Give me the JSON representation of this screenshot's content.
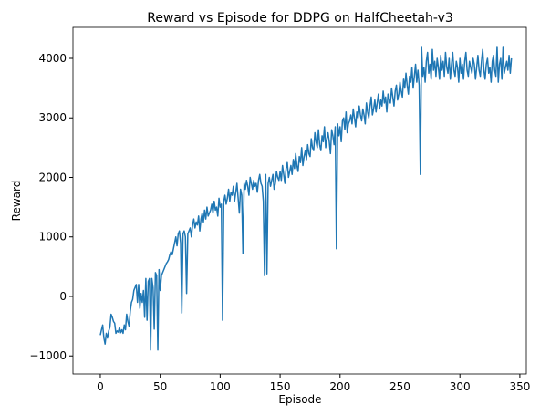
{
  "chart_data": {
    "type": "line",
    "title": "Reward vs Episode for DDPG on HalfCheetah-v3",
    "xlabel": "Episode",
    "ylabel": "Reward",
    "xlim": [
      -22.8,
      355.4
    ],
    "ylim": [
      -1303,
      4521
    ],
    "xticks": [
      0,
      50,
      100,
      150,
      200,
      250,
      300,
      350
    ],
    "yticks": [
      {
        "value": -1000,
        "label": "−1000"
      },
      0,
      1000,
      2000,
      3000,
      4000
    ],
    "grid": false,
    "x": [
      0,
      1,
      2,
      3,
      4,
      5,
      6,
      7,
      8,
      9,
      10,
      11,
      12,
      13,
      14,
      15,
      16,
      17,
      18,
      19,
      20,
      21,
      22,
      23,
      24,
      25,
      26,
      27,
      28,
      29,
      30,
      31,
      32,
      33,
      34,
      35,
      36,
      37,
      38,
      39,
      40,
      41,
      42,
      43,
      44,
      45,
      46,
      47,
      48,
      49,
      50,
      51,
      52,
      53,
      54,
      55,
      56,
      57,
      58,
      59,
      60,
      61,
      62,
      63,
      64,
      65,
      66,
      67,
      68,
      69,
      70,
      71,
      72,
      73,
      74,
      75,
      76,
      77,
      78,
      79,
      80,
      81,
      82,
      83,
      84,
      85,
      86,
      87,
      88,
      89,
      90,
      91,
      92,
      93,
      94,
      95,
      96,
      97,
      98,
      99,
      100,
      101,
      102,
      103,
      104,
      105,
      106,
      107,
      108,
      109,
      110,
      111,
      112,
      113,
      114,
      115,
      116,
      117,
      118,
      119,
      120,
      121,
      122,
      123,
      124,
      125,
      126,
      127,
      128,
      129,
      130,
      131,
      132,
      133,
      134,
      135,
      136,
      137,
      138,
      139,
      140,
      141,
      142,
      143,
      144,
      145,
      146,
      147,
      148,
      149,
      150,
      151,
      152,
      153,
      154,
      155,
      156,
      157,
      158,
      159,
      160,
      161,
      162,
      163,
      164,
      165,
      166,
      167,
      168,
      169,
      170,
      171,
      172,
      173,
      174,
      175,
      176,
      177,
      178,
      179,
      180,
      181,
      182,
      183,
      184,
      185,
      186,
      187,
      188,
      189,
      190,
      191,
      192,
      193,
      194,
      195,
      196,
      197,
      198,
      199,
      200,
      201,
      202,
      203,
      204,
      205,
      206,
      207,
      208,
      209,
      210,
      211,
      212,
      213,
      214,
      215,
      216,
      217,
      218,
      219,
      220,
      221,
      222,
      223,
      224,
      225,
      226,
      227,
      228,
      229,
      230,
      231,
      232,
      233,
      234,
      235,
      236,
      237,
      238,
      239,
      240,
      241,
      242,
      243,
      244,
      245,
      246,
      247,
      248,
      249,
      250,
      251,
      252,
      253,
      254,
      255,
      256,
      257,
      258,
      259,
      260,
      261,
      262,
      263,
      264,
      265,
      266,
      267,
      268,
      269,
      270,
      271,
      272,
      273,
      274,
      275,
      276,
      277,
      278,
      279,
      280,
      281,
      282,
      283,
      284,
      285,
      286,
      287,
      288,
      289,
      290,
      291,
      292,
      293,
      294,
      295,
      296,
      297,
      298,
      299,
      300,
      301,
      302,
      303,
      304,
      305,
      306,
      307,
      308,
      309,
      310,
      311,
      312,
      313,
      314,
      315,
      316,
      317,
      318,
      319,
      320,
      321,
      322,
      323,
      324,
      325,
      326,
      327,
      328,
      329,
      330,
      331,
      332,
      333,
      334,
      335,
      336,
      337,
      338,
      339,
      340,
      341,
      342,
      343
    ],
    "series": [
      {
        "name": "Reward",
        "color": "#1f77b4",
        "values": [
          -650,
          -560,
          -480,
          -700,
          -800,
          -620,
          -700,
          -580,
          -520,
          -300,
          -350,
          -420,
          -450,
          -620,
          -580,
          -600,
          -520,
          -610,
          -560,
          -620,
          -480,
          -560,
          -300,
          -420,
          -500,
          -250,
          -100,
          -50,
          100,
          150,
          200,
          -100,
          200,
          -200,
          50,
          -100,
          100,
          -350,
          300,
          -400,
          250,
          300,
          -900,
          300,
          150,
          -550,
          400,
          350,
          -900,
          450,
          100,
          350,
          400,
          450,
          500,
          550,
          580,
          620,
          700,
          750,
          700,
          800,
          900,
          1000,
          850,
          1050,
          1100,
          900,
          -280,
          1050,
          1100,
          1000,
          50,
          1050,
          1100,
          1150,
          1000,
          1200,
          1300,
          1150,
          1250,
          1200,
          1350,
          1100,
          1300,
          1400,
          1250,
          1450,
          1300,
          1500,
          1350,
          1400,
          1450,
          1550,
          1400,
          1600,
          1450,
          1500,
          1350,
          1650,
          1500,
          1550,
          -400,
          1600,
          1700,
          1550,
          1650,
          1800,
          1600,
          1750,
          1700,
          1850,
          1600,
          1750,
          1900,
          1650,
          1400,
          1800,
          1700,
          720,
          1900,
          1800,
          1950,
          1850,
          1700,
          2000,
          1900,
          1800,
          1950,
          1850,
          1900,
          1750,
          1950,
          2050,
          1900,
          1850,
          1600,
          350,
          2050,
          380,
          1900,
          2000,
          1850,
          1950,
          2050,
          1800,
          1900,
          2100,
          2000,
          1950,
          2100,
          1950,
          2200,
          2050,
          1900,
          2150,
          2250,
          2000,
          2100,
          2200,
          2050,
          2300,
          2150,
          2400,
          2200,
          2100,
          2350,
          2250,
          2500,
          2200,
          2350,
          2450,
          2300,
          2550,
          2400,
          2350,
          2650,
          2500,
          2450,
          2750,
          2600,
          2500,
          2800,
          2550,
          2450,
          2700,
          2600,
          2850,
          2500,
          2650,
          2750,
          2600,
          2400,
          2800,
          2700,
          2550,
          2850,
          800,
          2900,
          2700,
          2850,
          2600,
          2950,
          3000,
          2800,
          3100,
          2750,
          2900,
          2950,
          3050,
          2900,
          3150,
          3000,
          2850,
          3100,
          3000,
          3200,
          3050,
          2950,
          3150,
          3050,
          2900,
          3250,
          3100,
          3000,
          3200,
          3350,
          3050,
          3150,
          3300,
          3100,
          3250,
          3400,
          3150,
          3300,
          3200,
          3450,
          3250,
          3350,
          3100,
          3400,
          3300,
          3250,
          3500,
          3350,
          3200,
          3450,
          3550,
          3300,
          3400,
          3600,
          3450,
          3350,
          3650,
          3500,
          3750,
          3550,
          3400,
          3700,
          3600,
          3850,
          3500,
          3700,
          3900,
          3600,
          3800,
          3550,
          2050,
          4200,
          3700,
          3850,
          3600,
          3950,
          4100,
          3750,
          3900,
          3650,
          4150,
          3800,
          3950,
          3700,
          4000,
          3850,
          3650,
          4050,
          3800,
          3950,
          3700,
          4100,
          3850,
          3750,
          4000,
          3650,
          3900,
          4100,
          3800,
          3700,
          3950,
          3850,
          3600,
          4000,
          3750,
          3900,
          3650,
          3950,
          4100,
          3800,
          3700,
          3950,
          3850,
          3750,
          4000,
          3900,
          3650,
          3850,
          4050,
          3800,
          3700,
          3950,
          4150,
          3800,
          3650,
          3900,
          4000,
          3750,
          3850,
          3600,
          3950,
          4050,
          3800,
          3700,
          4200,
          3600,
          3900,
          4000,
          3650,
          4200,
          3750,
          3850,
          3950,
          3800,
          4050,
          3750,
          4000
        ]
      }
    ]
  }
}
